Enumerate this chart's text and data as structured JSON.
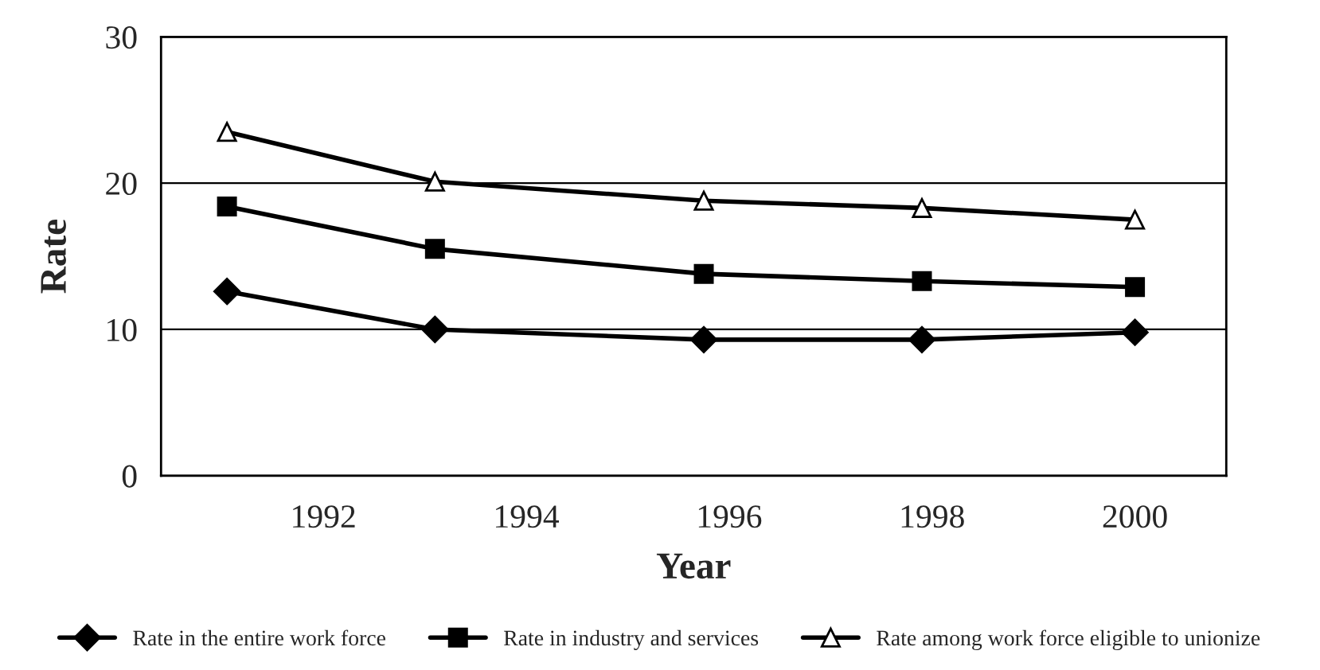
{
  "chart_data": {
    "type": "line",
    "xlabel": "Year",
    "ylabel": "Rate",
    "x": [
      1991.05,
      1993.1,
      1995.75,
      1997.9,
      2000.0
    ],
    "series": [
      {
        "name": "Rate in the entire work force",
        "color": "#000000",
        "marker": "diamond",
        "values": [
          12.6,
          10.0,
          9.3,
          9.3,
          9.8
        ]
      },
      {
        "name": "Rate in industry and services",
        "color": "#000000",
        "marker": "square",
        "values": [
          18.4,
          15.5,
          13.8,
          13.3,
          12.9
        ]
      },
      {
        "name": "Rate among work force eligible to unionize",
        "color": "#000000",
        "marker": "triangle",
        "values": [
          23.5,
          20.1,
          18.8,
          18.3,
          17.5
        ]
      }
    ],
    "xlim": [
      1990.4,
      2000.9
    ],
    "xticks": [
      1992,
      1994,
      1996,
      1998,
      2000
    ],
    "ylim": [
      0,
      30
    ],
    "yticks": [
      0,
      10,
      20,
      30
    ],
    "grid": "y",
    "legend": "bottom",
    "line_style": "solid"
  }
}
